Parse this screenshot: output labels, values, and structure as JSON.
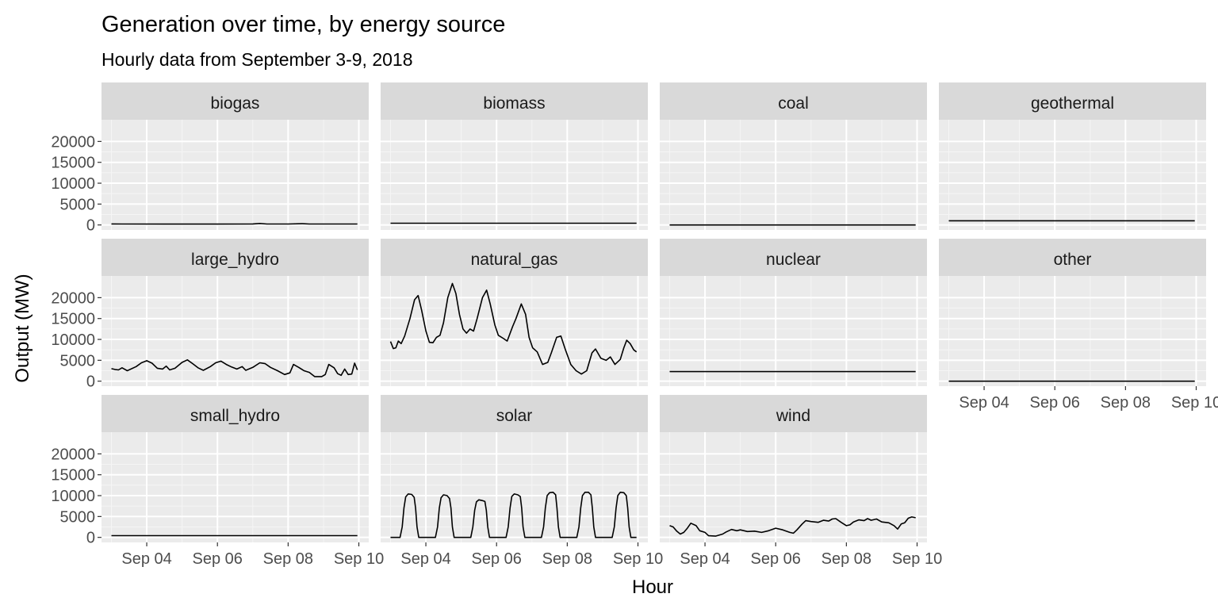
{
  "chart_data": {
    "type": "line",
    "title": "Generation over time, by energy source",
    "subtitle": "Hourly data from September 3-9, 2018",
    "xlabel": "Hour",
    "ylabel": "Output (MW)",
    "x_ticks": [
      "Sep 04",
      "Sep 06",
      "Sep 08",
      "Sep 10"
    ],
    "x_tick_days": [
      4,
      6,
      8,
      10
    ],
    "xlim_days": [
      2.72,
      10.28
    ],
    "y_ticks": [
      0,
      5000,
      10000,
      15000,
      20000
    ],
    "ylim": [
      -1200,
      25200
    ],
    "grid": true,
    "facet_layout": {
      "columns": 4,
      "rows": 3
    },
    "colors": {
      "panel_background": "#ebebeb",
      "strip_background": "#d9d9d9",
      "grid_major": "#ffffff",
      "grid_minor": "#f5f5f5",
      "line": "#000000",
      "tick_text": "#4d4d4d"
    },
    "series_x_range_days": [
      3.0,
      9.96
    ],
    "series": [
      {
        "name": "biogas",
        "values": [
          [
            3.0,
            250
          ],
          [
            3.3,
            220
          ],
          [
            4.5,
            210
          ],
          [
            6.0,
            200
          ],
          [
            7.0,
            240
          ],
          [
            7.2,
            350
          ],
          [
            7.4,
            230
          ],
          [
            8.0,
            230
          ],
          [
            8.4,
            300
          ],
          [
            8.6,
            220
          ],
          [
            9.96,
            220
          ]
        ]
      },
      {
        "name": "biomass",
        "values": [
          [
            3.0,
            420
          ],
          [
            9.96,
            420
          ]
        ]
      },
      {
        "name": "coal",
        "values": [
          [
            3.0,
            0
          ],
          [
            9.96,
            0
          ]
        ]
      },
      {
        "name": "geothermal",
        "values": [
          [
            3.0,
            1000
          ],
          [
            9.96,
            1000
          ]
        ]
      },
      {
        "name": "large_hydro",
        "values": [
          [
            3.0,
            3000
          ],
          [
            3.1,
            2800
          ],
          [
            3.2,
            2700
          ],
          [
            3.3,
            3200
          ],
          [
            3.45,
            2500
          ],
          [
            3.7,
            3500
          ],
          [
            3.85,
            4400
          ],
          [
            4.0,
            4900
          ],
          [
            4.15,
            4300
          ],
          [
            4.3,
            3100
          ],
          [
            4.45,
            2900
          ],
          [
            4.55,
            3600
          ],
          [
            4.65,
            2700
          ],
          [
            4.8,
            3100
          ],
          [
            5.0,
            4500
          ],
          [
            5.15,
            5100
          ],
          [
            5.3,
            4200
          ],
          [
            5.45,
            3200
          ],
          [
            5.6,
            2600
          ],
          [
            5.8,
            3500
          ],
          [
            5.95,
            4400
          ],
          [
            6.1,
            4800
          ],
          [
            6.25,
            4000
          ],
          [
            6.4,
            3400
          ],
          [
            6.55,
            2900
          ],
          [
            6.7,
            3500
          ],
          [
            6.8,
            2600
          ],
          [
            7.0,
            3300
          ],
          [
            7.2,
            4400
          ],
          [
            7.35,
            4200
          ],
          [
            7.5,
            3300
          ],
          [
            7.7,
            2500
          ],
          [
            7.9,
            1600
          ],
          [
            8.05,
            2000
          ],
          [
            8.15,
            4000
          ],
          [
            8.3,
            3300
          ],
          [
            8.45,
            2500
          ],
          [
            8.6,
            2100
          ],
          [
            8.75,
            1100
          ],
          [
            8.95,
            1100
          ],
          [
            9.05,
            1600
          ],
          [
            9.15,
            4000
          ],
          [
            9.3,
            3200
          ],
          [
            9.4,
            1800
          ],
          [
            9.5,
            1400
          ],
          [
            9.6,
            2900
          ],
          [
            9.7,
            1600
          ],
          [
            9.8,
            1700
          ],
          [
            9.88,
            4300
          ],
          [
            9.96,
            2700
          ]
        ]
      },
      {
        "name": "natural_gas",
        "values": [
          [
            3.0,
            9500
          ],
          [
            3.08,
            7800
          ],
          [
            3.15,
            8000
          ],
          [
            3.22,
            9600
          ],
          [
            3.3,
            9000
          ],
          [
            3.4,
            10800
          ],
          [
            3.55,
            15000
          ],
          [
            3.68,
            19500
          ],
          [
            3.78,
            20500
          ],
          [
            3.88,
            17000
          ],
          [
            4.0,
            12000
          ],
          [
            4.1,
            9300
          ],
          [
            4.2,
            9200
          ],
          [
            4.3,
            10500
          ],
          [
            4.4,
            11000
          ],
          [
            4.5,
            14000
          ],
          [
            4.62,
            20000
          ],
          [
            4.75,
            23400
          ],
          [
            4.85,
            21000
          ],
          [
            4.95,
            16000
          ],
          [
            5.05,
            12500
          ],
          [
            5.15,
            11500
          ],
          [
            5.25,
            12500
          ],
          [
            5.35,
            12000
          ],
          [
            5.45,
            15000
          ],
          [
            5.6,
            20000
          ],
          [
            5.72,
            21800
          ],
          [
            5.82,
            18500
          ],
          [
            5.95,
            13500
          ],
          [
            6.05,
            11000
          ],
          [
            6.2,
            10200
          ],
          [
            6.3,
            9600
          ],
          [
            6.45,
            13000
          ],
          [
            6.55,
            15000
          ],
          [
            6.7,
            18500
          ],
          [
            6.82,
            16000
          ],
          [
            6.92,
            10500
          ],
          [
            7.02,
            8000
          ],
          [
            7.15,
            7000
          ],
          [
            7.3,
            4000
          ],
          [
            7.45,
            4500
          ],
          [
            7.55,
            6800
          ],
          [
            7.7,
            10500
          ],
          [
            7.82,
            10800
          ],
          [
            7.95,
            7500
          ],
          [
            8.1,
            4000
          ],
          [
            8.25,
            2500
          ],
          [
            8.4,
            1700
          ],
          [
            8.55,
            2500
          ],
          [
            8.7,
            6800
          ],
          [
            8.8,
            7700
          ],
          [
            8.95,
            5500
          ],
          [
            9.1,
            5000
          ],
          [
            9.22,
            5800
          ],
          [
            9.35,
            4000
          ],
          [
            9.5,
            5200
          ],
          [
            9.6,
            8000
          ],
          [
            9.68,
            9800
          ],
          [
            9.78,
            9000
          ],
          [
            9.88,
            7500
          ],
          [
            9.96,
            7000
          ]
        ]
      },
      {
        "name": "nuclear",
        "values": [
          [
            3.0,
            2300
          ],
          [
            9.96,
            2300
          ]
        ]
      },
      {
        "name": "other",
        "values": [
          [
            3.0,
            0
          ],
          [
            9.96,
            0
          ]
        ]
      },
      {
        "name": "small_hydro",
        "values": [
          [
            3.0,
            420
          ],
          [
            9.96,
            420
          ]
        ]
      },
      {
        "name": "solar",
        "values": [
          [
            3.0,
            0
          ],
          [
            3.27,
            0
          ],
          [
            3.33,
            2500
          ],
          [
            3.38,
            7000
          ],
          [
            3.43,
            9700
          ],
          [
            3.5,
            10400
          ],
          [
            3.6,
            10300
          ],
          [
            3.67,
            9600
          ],
          [
            3.71,
            7000
          ],
          [
            3.75,
            2500
          ],
          [
            3.8,
            0
          ],
          [
            4.27,
            0
          ],
          [
            4.33,
            2500
          ],
          [
            4.38,
            7000
          ],
          [
            4.43,
            9500
          ],
          [
            4.5,
            10200
          ],
          [
            4.6,
            10000
          ],
          [
            4.67,
            9300
          ],
          [
            4.71,
            7000
          ],
          [
            4.75,
            2500
          ],
          [
            4.8,
            0
          ],
          [
            5.27,
            0
          ],
          [
            5.33,
            2500
          ],
          [
            5.38,
            6500
          ],
          [
            5.43,
            8500
          ],
          [
            5.5,
            9000
          ],
          [
            5.6,
            8800
          ],
          [
            5.67,
            8600
          ],
          [
            5.71,
            6500
          ],
          [
            5.75,
            2500
          ],
          [
            5.8,
            0
          ],
          [
            6.27,
            0
          ],
          [
            6.33,
            2500
          ],
          [
            6.38,
            7000
          ],
          [
            6.43,
            9800
          ],
          [
            6.5,
            10400
          ],
          [
            6.6,
            10200
          ],
          [
            6.67,
            9800
          ],
          [
            6.71,
            7000
          ],
          [
            6.75,
            2500
          ],
          [
            6.8,
            0
          ],
          [
            7.27,
            0
          ],
          [
            7.33,
            2500
          ],
          [
            7.38,
            7000
          ],
          [
            7.43,
            10000
          ],
          [
            7.5,
            10700
          ],
          [
            7.6,
            10800
          ],
          [
            7.67,
            10200
          ],
          [
            7.71,
            7000
          ],
          [
            7.75,
            2500
          ],
          [
            7.8,
            0
          ],
          [
            8.27,
            0
          ],
          [
            8.33,
            2500
          ],
          [
            8.38,
            7000
          ],
          [
            8.43,
            10000
          ],
          [
            8.5,
            10800
          ],
          [
            8.6,
            10800
          ],
          [
            8.67,
            10200
          ],
          [
            8.71,
            7000
          ],
          [
            8.75,
            2500
          ],
          [
            8.8,
            0
          ],
          [
            9.27,
            0
          ],
          [
            9.33,
            2500
          ],
          [
            9.38,
            7000
          ],
          [
            9.43,
            10000
          ],
          [
            9.5,
            10800
          ],
          [
            9.6,
            10700
          ],
          [
            9.67,
            10000
          ],
          [
            9.71,
            7000
          ],
          [
            9.75,
            2500
          ],
          [
            9.8,
            0
          ],
          [
            9.96,
            0
          ]
        ]
      },
      {
        "name": "wind",
        "values": [
          [
            3.0,
            2800
          ],
          [
            3.1,
            2500
          ],
          [
            3.2,
            1500
          ],
          [
            3.3,
            800
          ],
          [
            3.4,
            1200
          ],
          [
            3.5,
            2200
          ],
          [
            3.6,
            3400
          ],
          [
            3.75,
            2800
          ],
          [
            3.85,
            1600
          ],
          [
            4.0,
            1200
          ],
          [
            4.1,
            400
          ],
          [
            4.3,
            300
          ],
          [
            4.5,
            800
          ],
          [
            4.6,
            1300
          ],
          [
            4.75,
            1900
          ],
          [
            4.9,
            1600
          ],
          [
            5.0,
            1800
          ],
          [
            5.2,
            1400
          ],
          [
            5.4,
            1500
          ],
          [
            5.6,
            1200
          ],
          [
            5.8,
            1600
          ],
          [
            6.0,
            2200
          ],
          [
            6.2,
            1800
          ],
          [
            6.4,
            1200
          ],
          [
            6.5,
            1000
          ],
          [
            6.6,
            1800
          ],
          [
            6.75,
            3200
          ],
          [
            6.85,
            4000
          ],
          [
            7.0,
            3800
          ],
          [
            7.2,
            3600
          ],
          [
            7.35,
            4100
          ],
          [
            7.5,
            3900
          ],
          [
            7.6,
            4400
          ],
          [
            7.7,
            4500
          ],
          [
            7.85,
            3600
          ],
          [
            8.0,
            2800
          ],
          [
            8.1,
            3000
          ],
          [
            8.2,
            3700
          ],
          [
            8.35,
            4200
          ],
          [
            8.5,
            4000
          ],
          [
            8.6,
            4500
          ],
          [
            8.7,
            4100
          ],
          [
            8.85,
            4400
          ],
          [
            9.0,
            3700
          ],
          [
            9.2,
            3500
          ],
          [
            9.35,
            2800
          ],
          [
            9.45,
            2000
          ],
          [
            9.55,
            3200
          ],
          [
            9.65,
            3500
          ],
          [
            9.75,
            4600
          ],
          [
            9.85,
            4900
          ],
          [
            9.96,
            4700
          ]
        ]
      }
    ]
  }
}
